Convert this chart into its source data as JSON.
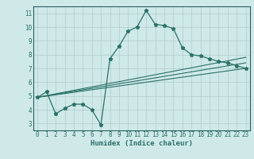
{
  "bg_color": "#cfe9e9",
  "grid_color": "#b0cccc",
  "line_color": "#2a7068",
  "xlabel": "Humidex (Indice chaleur)",
  "xlim": [
    -0.5,
    23.5
  ],
  "ylim": [
    2.5,
    11.5
  ],
  "xticks": [
    0,
    1,
    2,
    3,
    4,
    5,
    6,
    7,
    8,
    9,
    10,
    11,
    12,
    13,
    14,
    15,
    16,
    17,
    18,
    19,
    20,
    21,
    22,
    23
  ],
  "yticks": [
    3,
    4,
    5,
    6,
    7,
    8,
    9,
    10,
    11
  ],
  "curve1_x": [
    0,
    1,
    2,
    3,
    4,
    5,
    6,
    7,
    8,
    9,
    10,
    11,
    12,
    13,
    14,
    15,
    16,
    17,
    18,
    19,
    20,
    21,
    22,
    23
  ],
  "curve1_y": [
    4.9,
    5.3,
    3.7,
    4.1,
    4.4,
    4.4,
    4.0,
    2.9,
    7.7,
    8.6,
    9.7,
    10.0,
    11.2,
    10.2,
    10.1,
    9.9,
    8.5,
    8.0,
    7.9,
    7.7,
    7.5,
    7.4,
    7.2,
    7.0
  ],
  "line2_x": [
    0,
    23
  ],
  "line2_y": [
    4.9,
    7.8
  ],
  "line3_x": [
    0,
    23
  ],
  "line3_y": [
    4.9,
    7.4
  ],
  "line4_x": [
    0,
    23
  ],
  "line4_y": [
    4.9,
    7.0
  ],
  "tick_fontsize": 5.5,
  "xlabel_fontsize": 6.5
}
